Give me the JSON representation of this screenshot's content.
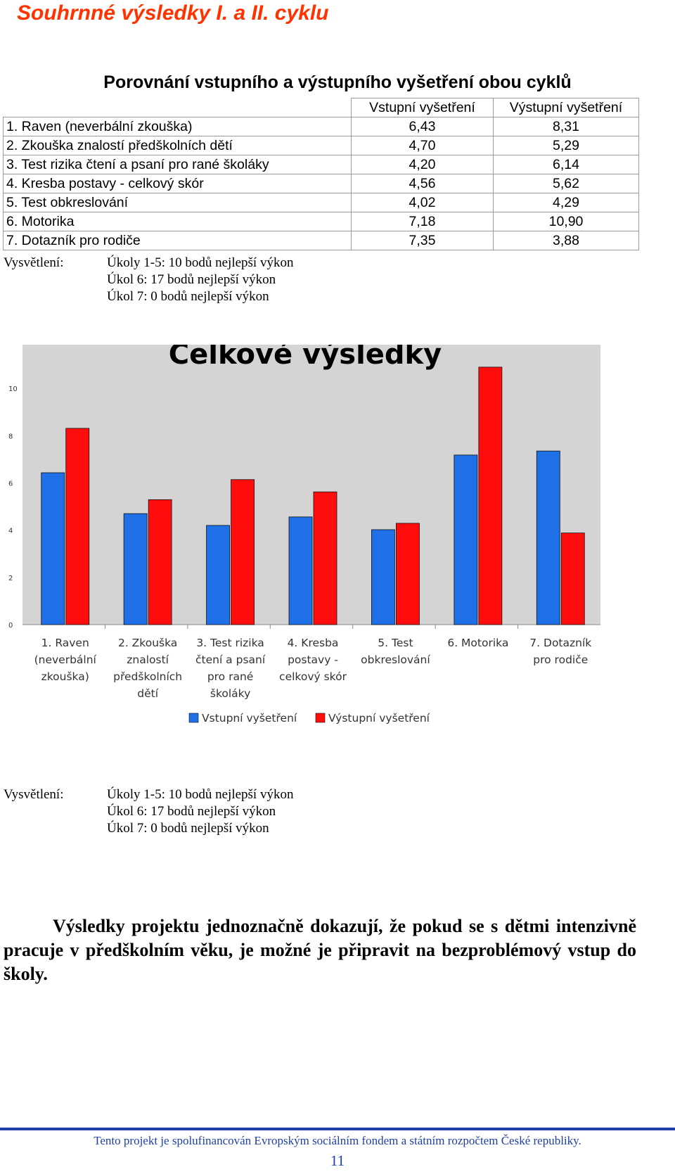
{
  "doc_title": "Souhrnné výsledky I. a II. cyklu",
  "table": {
    "title": "Porovnání vstupního a výstupního vyšetření obou cyklů",
    "headers": [
      "",
      "Vstupní vyšetření",
      "Výstupní vyšetření"
    ],
    "rows": [
      [
        "1. Raven (neverbální zkouška)",
        "6,43",
        "8,31"
      ],
      [
        "2. Zkouška znalostí předškolních dětí",
        "4,70",
        "5,29"
      ],
      [
        "3. Test rizika čtení a psaní pro rané školáky",
        "4,20",
        "6,14"
      ],
      [
        "4. Kresba postavy - celkový skór",
        "4,56",
        "5,62"
      ],
      [
        "5. Test obkreslování",
        "4,02",
        "4,29"
      ],
      [
        "6. Motorika",
        "7,18",
        "10,90"
      ],
      [
        "7. Dotazník pro rodiče",
        "7,35",
        "3,88"
      ]
    ]
  },
  "note": {
    "label": "Vysvětlení:",
    "lines": [
      "Úkoly 1-5: 10 bodů nejlepší výkon",
      "Úkol 6: 17 bodů nejlepší výkon",
      "Úkol 7: 0 bodů nejlepší výkon"
    ]
  },
  "chart_data": {
    "type": "bar",
    "title": "Celkové výsledky",
    "categories": [
      [
        "1. Raven",
        "(neverbální",
        "zkouška)"
      ],
      [
        "2. Zkouška",
        "znalostí",
        "předškolních",
        "dětí"
      ],
      [
        "3. Test rizika",
        "čtení a psaní",
        "pro rané",
        "školáky"
      ],
      [
        "4. Kresba",
        "postavy -",
        "celkový skór"
      ],
      [
        "5. Test",
        "obkreslování"
      ],
      [
        "6. Motorika"
      ],
      [
        "7. Dotazník",
        "pro rodiče"
      ]
    ],
    "series": [
      {
        "name": "Vstupní vyšetření",
        "color": "#1f6fe6",
        "values": [
          6.43,
          4.7,
          4.2,
          4.56,
          4.02,
          7.18,
          7.35
        ]
      },
      {
        "name": "Výstupní vyšetření",
        "color": "#ff0d0d",
        "values": [
          8.31,
          5.29,
          6.14,
          5.62,
          4.29,
          10.9,
          3.88
        ]
      }
    ],
    "yticks": [
      "0",
      "2",
      "4",
      "6",
      "8",
      "10",
      "12"
    ],
    "ylim": [
      0,
      12
    ],
    "grid": false,
    "legend": "bottom",
    "plot_background": "#d4d4d4"
  },
  "conclusion": "Výsledky projektu jednoznačně dokazují, že pokud se s dětmi intenzivně pracuje v předškolním věku, je možné je připravit na bezproblémový vstup do školy.",
  "footer": {
    "text": "Tento projekt je spolufinancován Evropským sociálním fondem a státním rozpočtem České republiky.",
    "page_number": "11"
  }
}
